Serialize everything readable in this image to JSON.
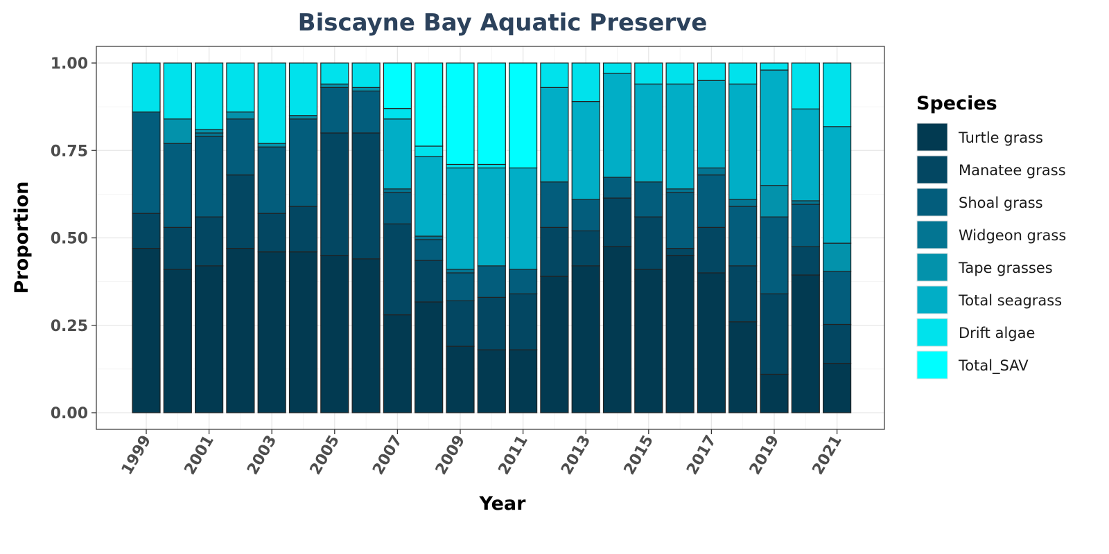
{
  "chart_data": {
    "type": "bar",
    "stacked": true,
    "title": "Biscayne Bay Aquatic Preserve",
    "xlabel": "Year",
    "ylabel": "Proportion",
    "ylim": [
      0,
      1
    ],
    "y_ticks": [
      "0.00",
      "0.25",
      "0.50",
      "0.75",
      "1.00"
    ],
    "x_ticks": [
      "1999",
      "2001",
      "2003",
      "2005",
      "2007",
      "2009",
      "2011",
      "2013",
      "2015",
      "2017",
      "2019",
      "2021"
    ],
    "grid": true,
    "legend_title": "Species",
    "legend_position": "right",
    "categories": [
      1999,
      2000,
      2001,
      2002,
      2003,
      2004,
      2005,
      2006,
      2007,
      2008,
      2009,
      2010,
      2011,
      2012,
      2013,
      2014,
      2015,
      2016,
      2017,
      2018,
      2019,
      2020,
      2021
    ],
    "series": [
      {
        "name": "Turtle grass",
        "color": "#023a51",
        "values": [
          0.47,
          0.41,
          0.42,
          0.47,
          0.46,
          0.46,
          0.45,
          0.44,
          0.28,
          0.32,
          0.19,
          0.18,
          0.18,
          0.39,
          0.42,
          0.48,
          0.41,
          0.45,
          0.4,
          0.26,
          0.11,
          0.39,
          0.14
        ]
      },
      {
        "name": "Manatee grass",
        "color": "#034762",
        "values": [
          0.1,
          0.12,
          0.14,
          0.21,
          0.11,
          0.13,
          0.35,
          0.36,
          0.26,
          0.12,
          0.13,
          0.15,
          0.16,
          0.14,
          0.1,
          0.14,
          0.15,
          0.02,
          0.13,
          0.16,
          0.23,
          0.08,
          0.11
        ]
      },
      {
        "name": "Shoal grass",
        "color": "#035d7c",
        "values": [
          0.29,
          0.24,
          0.23,
          0.16,
          0.19,
          0.25,
          0.13,
          0.12,
          0.09,
          0.06,
          0.08,
          0.09,
          0.07,
          0.13,
          0.09,
          0.06,
          0.1,
          0.16,
          0.15,
          0.17,
          0.22,
          0.12,
          0.15
        ]
      },
      {
        "name": "Widgeon grass",
        "color": "#037592",
        "values": [
          0.0,
          0.0,
          0.01,
          0.0,
          0.0,
          0.0,
          0.0,
          0.0,
          0.01,
          0.01,
          0.01,
          0.0,
          0.0,
          0.0,
          0.0,
          0.0,
          0.0,
          0.01,
          0.02,
          0.02,
          0.0,
          0.01,
          0.0
        ]
      },
      {
        "name": "Tape grasses",
        "color": "#0392ab",
        "values": [
          0.0,
          0.07,
          0.01,
          0.02,
          0.01,
          0.01,
          0.01,
          0.01,
          0.0,
          0.0,
          0.0,
          0.0,
          0.0,
          0.0,
          0.0,
          0.0,
          0.0,
          0.0,
          0.0,
          0.0,
          0.09,
          0.0,
          0.08
        ]
      },
      {
        "name": "Total seagrass",
        "color": "#01aec6",
        "values": [
          0.0,
          0.0,
          0.0,
          0.0,
          0.0,
          0.0,
          0.0,
          0.0,
          0.2,
          0.23,
          0.29,
          0.28,
          0.29,
          0.27,
          0.28,
          0.3,
          0.28,
          0.3,
          0.25,
          0.33,
          0.33,
          0.26,
          0.33
        ]
      },
      {
        "name": "Drift algae",
        "color": "#00e2ec",
        "values": [
          0.14,
          0.16,
          0.19,
          0.14,
          0.23,
          0.15,
          0.06,
          0.07,
          0.03,
          0.03,
          0.01,
          0.01,
          0.0,
          0.07,
          0.11,
          0.03,
          0.06,
          0.06,
          0.05,
          0.06,
          0.02,
          0.13,
          0.18
        ]
      },
      {
        "name": "Total_SAV",
        "color": "#00feff",
        "values": [
          0.0,
          0.0,
          0.0,
          0.0,
          0.0,
          0.0,
          0.0,
          0.0,
          0.13,
          0.24,
          0.29,
          0.29,
          0.3,
          0.0,
          0.0,
          0.0,
          0.0,
          0.0,
          0.0,
          0.0,
          0.0,
          0.0,
          0.0
        ]
      }
    ]
  }
}
